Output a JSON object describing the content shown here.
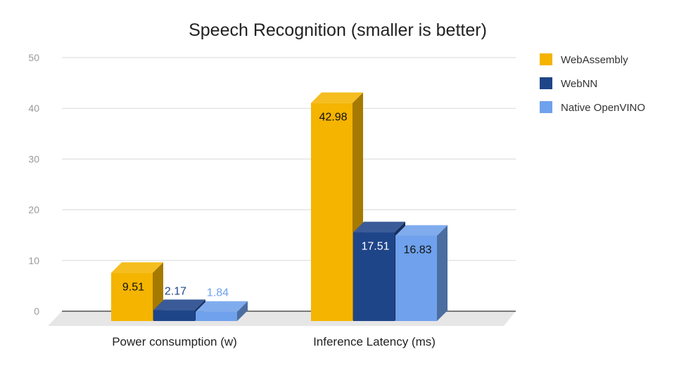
{
  "chart_data": {
    "type": "bar",
    "title": "Speech Recognition (smaller is better)",
    "categories": [
      "Power consumption (w)",
      "Inference Latency (ms)"
    ],
    "series": [
      {
        "name": "WebAssembly",
        "values": [
          9.51,
          42.98
        ],
        "color": "#F4B400"
      },
      {
        "name": "WebNN",
        "values": [
          2.17,
          17.51
        ],
        "color": "#1F4589"
      },
      {
        "name": "Native OpenVINO",
        "values": [
          1.84,
          16.83
        ],
        "color": "#6FA1EC"
      }
    ],
    "ylim": [
      0,
      50
    ],
    "yticks": [
      "0",
      "10",
      "20",
      "30",
      "40",
      "50"
    ],
    "xlabel": "",
    "ylabel": "",
    "grid": true,
    "legend_position": "right",
    "style": "3d-column"
  }
}
